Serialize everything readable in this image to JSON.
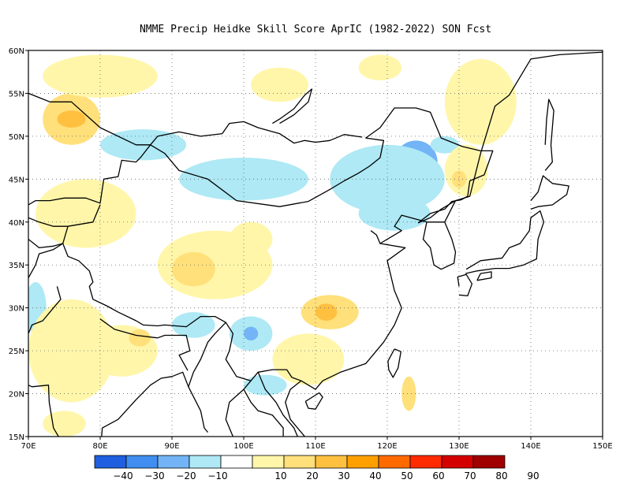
{
  "title": "NMME Precip Heidke Skill Score AprIC (1982-2022) SON Fcst",
  "map": {
    "lon_range": [
      70,
      150
    ],
    "lat_range": [
      15,
      60
    ],
    "lon_ticks": [
      "70E",
      "80E",
      "90E",
      "100E",
      "110E",
      "120E",
      "130E",
      "140E",
      "150E"
    ],
    "lat_ticks": [
      "60N",
      "55N",
      "50N",
      "45N",
      "40N",
      "35N",
      "30N",
      "25N",
      "20N",
      "15N"
    ],
    "grid": "dotted",
    "coastline_color": "#000000"
  },
  "colorbar": {
    "colors": [
      "#1f5fe0",
      "#3f8ef0",
      "#72b4f5",
      "#aee9f5",
      "#ffffff",
      "#fff6aa",
      "#ffe07a",
      "#ffc040",
      "#ffa000",
      "#ff6a00",
      "#ff2a00",
      "#d40000",
      "#a00000"
    ],
    "labels": [
      "-40",
      "-30",
      "-20",
      "-10",
      "10",
      "20",
      "30",
      "40",
      "50",
      "60",
      "70",
      "80",
      "90"
    ]
  },
  "anomalies": [
    {
      "lon": 124.0,
      "lat": 47.0,
      "rx": 3.0,
      "ry": 2.5,
      "color": "#72b4f5"
    },
    {
      "lon": 123.5,
      "lat": 47.0,
      "rx": 1.5,
      "ry": 1.2,
      "color": "#3f8ef0"
    },
    {
      "lon": 120.0,
      "lat": 45.0,
      "rx": 8.0,
      "ry": 4.0,
      "color": "#aee9f5"
    },
    {
      "lon": 100.0,
      "lat": 45.0,
      "rx": 9.0,
      "ry": 2.5,
      "color": "#aee9f5"
    },
    {
      "lon": 86.0,
      "lat": 49.0,
      "rx": 6.0,
      "ry": 1.8,
      "color": "#aee9f5"
    },
    {
      "lon": 121.0,
      "lat": 41.0,
      "rx": 5.0,
      "ry": 2.0,
      "color": "#aee9f5"
    },
    {
      "lon": 101.0,
      "lat": 27.0,
      "rx": 3.0,
      "ry": 2.0,
      "color": "#aee9f5"
    },
    {
      "lon": 101.0,
      "lat": 27.0,
      "rx": 1.0,
      "ry": 0.8,
      "color": "#72b4f5"
    },
    {
      "lon": 93.0,
      "lat": 28.0,
      "rx": 3.0,
      "ry": 1.5,
      "color": "#aee9f5"
    },
    {
      "lon": 71.0,
      "lat": 30.0,
      "rx": 1.5,
      "ry": 3.0,
      "color": "#aee9f5"
    },
    {
      "lon": 103.0,
      "lat": 21.0,
      "rx": 3.0,
      "ry": 1.2,
      "color": "#aee9f5"
    },
    {
      "lon": 128.0,
      "lat": 49.0,
      "rx": 2.0,
      "ry": 1.0,
      "color": "#aee9f5"
    },
    {
      "lon": 76.0,
      "lat": 52.0,
      "rx": 4.0,
      "ry": 3.0,
      "color": "#ffe07a"
    },
    {
      "lon": 76.0,
      "lat": 52.0,
      "rx": 2.0,
      "ry": 1.0,
      "color": "#ffc040"
    },
    {
      "lon": 80.0,
      "lat": 57.0,
      "rx": 8.0,
      "ry": 2.5,
      "color": "#fff6aa"
    },
    {
      "lon": 78.0,
      "lat": 41.0,
      "rx": 7.0,
      "ry": 4.0,
      "color": "#fff6aa"
    },
    {
      "lon": 96.0,
      "lat": 35.0,
      "rx": 8.0,
      "ry": 4.0,
      "color": "#fff6aa"
    },
    {
      "lon": 93.0,
      "lat": 34.5,
      "rx": 3.0,
      "ry": 2.0,
      "color": "#ffe07a"
    },
    {
      "lon": 101.0,
      "lat": 38.0,
      "rx": 3.0,
      "ry": 2.0,
      "color": "#fff6aa"
    },
    {
      "lon": 112.0,
      "lat": 29.5,
      "rx": 4.0,
      "ry": 2.0,
      "color": "#ffe07a"
    },
    {
      "lon": 111.5,
      "lat": 29.5,
      "rx": 1.5,
      "ry": 1.0,
      "color": "#ffc040"
    },
    {
      "lon": 76.0,
      "lat": 25.0,
      "rx": 6.0,
      "ry": 6.0,
      "color": "#fff6aa"
    },
    {
      "lon": 83.0,
      "lat": 25.0,
      "rx": 5.0,
      "ry": 3.0,
      "color": "#fff6aa"
    },
    {
      "lon": 85.5,
      "lat": 26.5,
      "rx": 1.5,
      "ry": 1.0,
      "color": "#ffe07a"
    },
    {
      "lon": 109.0,
      "lat": 24.0,
      "rx": 5.0,
      "ry": 3.0,
      "color": "#fff6aa"
    },
    {
      "lon": 133.0,
      "lat": 54.0,
      "rx": 5.0,
      "ry": 5.0,
      "color": "#fff6aa"
    },
    {
      "lon": 119.0,
      "lat": 58.0,
      "rx": 3.0,
      "ry": 1.5,
      "color": "#fff6aa"
    },
    {
      "lon": 131.0,
      "lat": 46.0,
      "rx": 3.0,
      "ry": 3.0,
      "color": "#fff6aa"
    },
    {
      "lon": 130.0,
      "lat": 45.0,
      "rx": 1.0,
      "ry": 1.0,
      "color": "#ffe07a"
    },
    {
      "lon": 105.0,
      "lat": 56.0,
      "rx": 4.0,
      "ry": 2.0,
      "color": "#fff6aa"
    },
    {
      "lon": 123.0,
      "lat": 20.0,
      "rx": 1.0,
      "ry": 2.0,
      "color": "#ffe07a"
    },
    {
      "lon": 75.0,
      "lat": 16.5,
      "rx": 3.0,
      "ry": 1.5,
      "color": "#fff6aa"
    }
  ]
}
